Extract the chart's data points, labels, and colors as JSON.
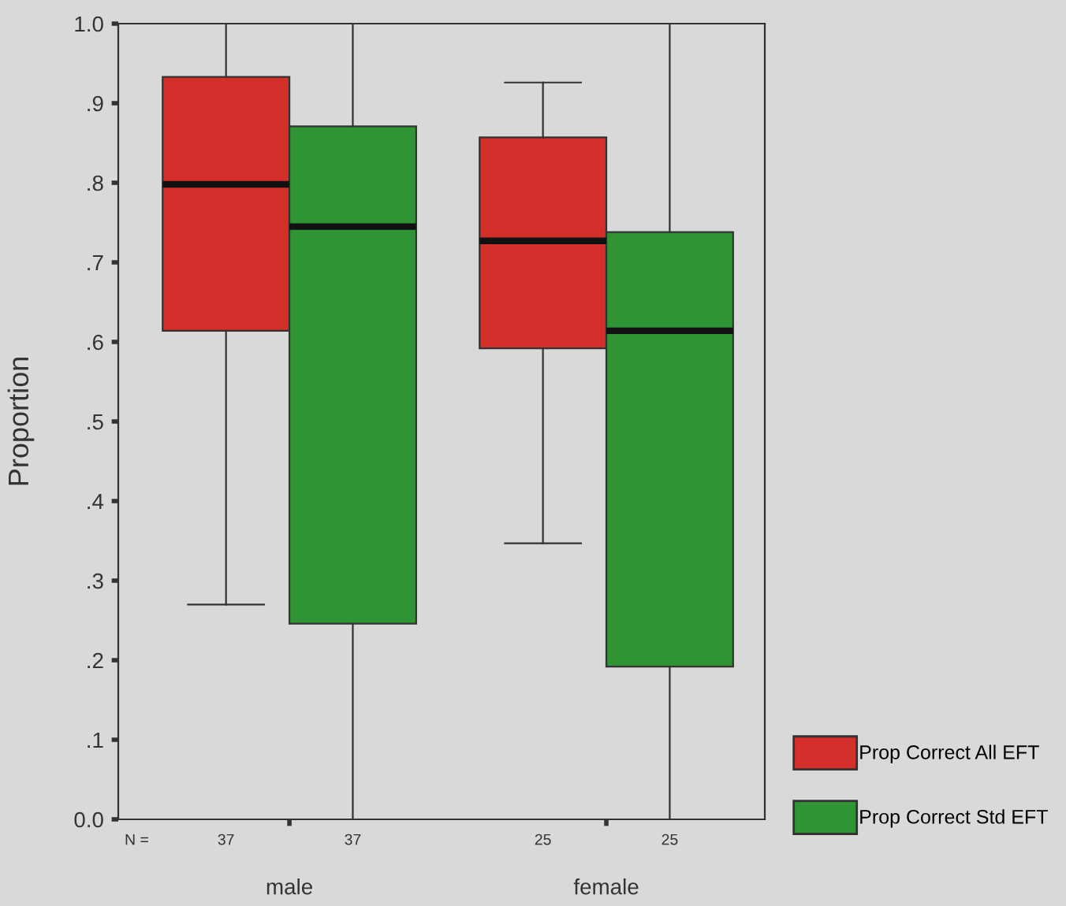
{
  "chart_data": {
    "type": "box",
    "ylabel": "Proportion",
    "categories": [
      "male",
      "female"
    ],
    "series": [
      {
        "name": "Prop Correct All EFT",
        "color": "#d42f2b",
        "boxes": [
          {
            "low": 0.27,
            "q1": 0.614,
            "median": 0.798,
            "q3": 0.933,
            "high": 1.0
          },
          {
            "low": 0.347,
            "q1": 0.592,
            "median": 0.727,
            "q3": 0.857,
            "high": 0.926
          }
        ]
      },
      {
        "name": "Prop Correct Std EFT",
        "color": "#2f9534",
        "boxes": [
          {
            "low": 0.0,
            "q1": 0.246,
            "median": 0.745,
            "q3": 0.871,
            "high": 1.0
          },
          {
            "low": 0.0,
            "q1": 0.192,
            "median": 0.614,
            "q3": 0.738,
            "high": 1.0
          }
        ]
      }
    ],
    "ylim": [
      0,
      1
    ],
    "yticks": [
      {
        "value": 0,
        "label": "0.0"
      },
      {
        "value": 0.1,
        "label": ".1"
      },
      {
        "value": 0.2,
        "label": ".2"
      },
      {
        "value": 0.3,
        "label": ".3"
      },
      {
        "value": 0.4,
        "label": ".4"
      },
      {
        "value": 0.5,
        "label": ".5"
      },
      {
        "value": 0.6,
        "label": ".6"
      },
      {
        "value": 0.7,
        "label": ".7"
      },
      {
        "value": 0.8,
        "label": ".8"
      },
      {
        "value": 0.9,
        "label": ".9"
      },
      {
        "value": 1.0,
        "label": "1.0"
      }
    ],
    "annotations": [
      "N =",
      "37",
      "37",
      "25",
      "25"
    ],
    "grid": false,
    "legend": "bottom right"
  }
}
